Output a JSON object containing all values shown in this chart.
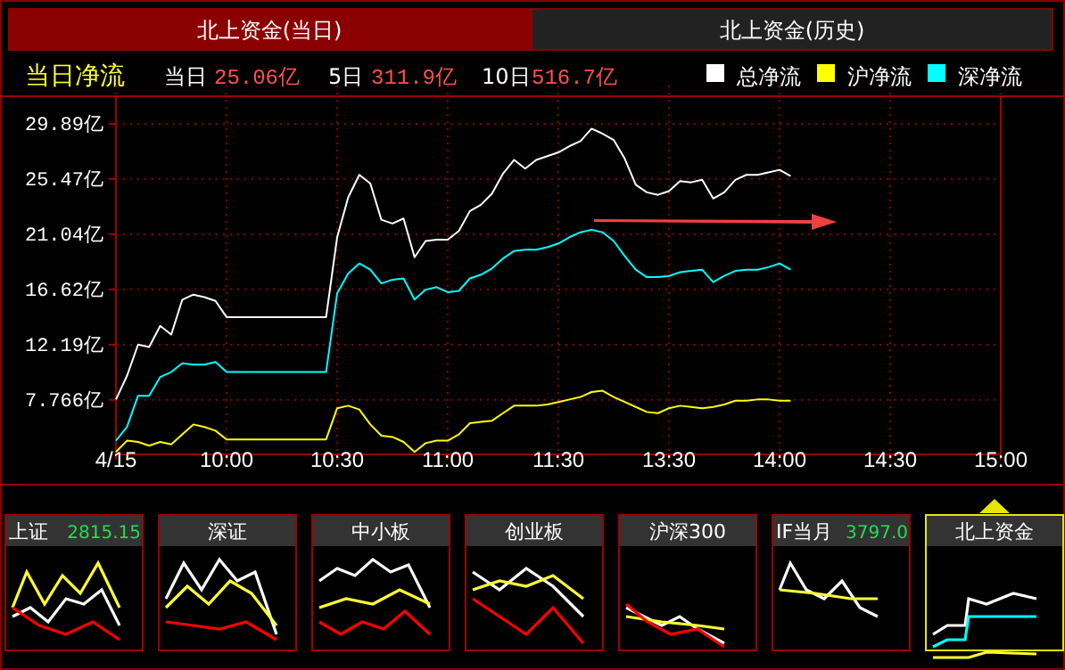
{
  "chart_data": [
    {
      "type": "line",
      "title": "当日净流",
      "annotations": [
        "当日",
        "25.06亿",
        "5日",
        "311.9亿",
        "10日",
        "516.7亿"
      ],
      "categories": [
        "4/15",
        null,
        null,
        null,
        null,
        null,
        null,
        null,
        null,
        null,
        "10:00",
        null,
        null,
        null,
        null,
        null,
        null,
        null,
        null,
        null,
        "10:30",
        null,
        null,
        null,
        null,
        null,
        null,
        null,
        null,
        null,
        "11:00",
        null,
        null,
        null,
        null,
        null,
        null,
        null,
        null,
        null,
        "11:30",
        null,
        null,
        null,
        null,
        null,
        null,
        null,
        null,
        null,
        "13:30",
        null,
        null,
        null,
        null,
        null,
        null,
        null,
        null,
        null,
        "14:00",
        null,
        null,
        null,
        null,
        null,
        null,
        null,
        null,
        null,
        "14:30",
        null,
        null,
        null,
        null,
        null,
        null,
        null,
        null,
        null,
        "15:00"
      ],
      "ylim": [
        3.4,
        32.1
      ],
      "yticks": [
        {
          "value": 7.766,
          "label": "7.766亿"
        },
        {
          "value": 12.19,
          "label": "12.19亿"
        },
        {
          "value": 16.62,
          "label": "16.62亿"
        },
        {
          "value": 21.04,
          "label": "21.04亿"
        },
        {
          "value": 25.47,
          "label": "25.47亿"
        },
        {
          "value": 29.89,
          "label": "29.89亿"
        }
      ],
      "grid": true,
      "legend": "top right",
      "series": [
        {
          "name": "总净流",
          "color": "#ffffff",
          "values": [
            7.8,
            9.7,
            12.2,
            12.0,
            13.7,
            13.0,
            15.8,
            16.2,
            16.0,
            15.7,
            14.4,
            14.4,
            14.4,
            14.4,
            14.4,
            14.4,
            14.4,
            14.4,
            14.4,
            14.4,
            20.8,
            24.0,
            25.8,
            25.1,
            22.2,
            21.9,
            22.3,
            19.2,
            20.5,
            20.6,
            20.6,
            21.3,
            22.9,
            23.4,
            24.3,
            25.9,
            27.0,
            26.3,
            27.0,
            27.3,
            27.6,
            28.1,
            28.5,
            29.5,
            29.1,
            28.6,
            27.1,
            25.0,
            24.4,
            24.2,
            24.5,
            25.3,
            25.2,
            25.4,
            23.9,
            24.4,
            25.4,
            25.8,
            25.8,
            26.0,
            26.2,
            25.7,
            null,
            null,
            null,
            null,
            null,
            null,
            null,
            null,
            null,
            null,
            null,
            null,
            null,
            null,
            null,
            null,
            null,
            null,
            null
          ]
        },
        {
          "name": "沪净流",
          "color": "#ffff00",
          "values": [
            3.6,
            4.5,
            4.4,
            4.1,
            4.4,
            4.2,
            5.0,
            5.8,
            5.6,
            5.3,
            4.6,
            4.6,
            4.6,
            4.6,
            4.6,
            4.6,
            4.6,
            4.6,
            4.6,
            4.6,
            7.1,
            7.3,
            7.0,
            5.8,
            4.9,
            4.8,
            4.4,
            3.6,
            4.3,
            4.5,
            4.5,
            5.0,
            5.9,
            6.0,
            6.1,
            6.7,
            7.3,
            7.3,
            7.3,
            7.4,
            7.6,
            7.8,
            8.0,
            8.4,
            8.5,
            8.0,
            7.6,
            7.2,
            6.8,
            6.7,
            7.1,
            7.3,
            7.2,
            7.1,
            7.2,
            7.4,
            7.7,
            7.7,
            7.8,
            7.8,
            7.7,
            7.7,
            null,
            null,
            null,
            null,
            null,
            null,
            null,
            null,
            null,
            null,
            null,
            null,
            null,
            null,
            null,
            null,
            null,
            null,
            null
          ]
        },
        {
          "name": "深净流",
          "color": "#00ffff",
          "values": [
            4.5,
            5.6,
            8.1,
            8.1,
            9.6,
            10.0,
            10.7,
            10.6,
            10.6,
            10.8,
            10.0,
            10.0,
            10.0,
            10.0,
            10.0,
            10.0,
            10.0,
            10.0,
            10.0,
            10.0,
            16.3,
            17.9,
            18.7,
            18.2,
            17.1,
            17.4,
            17.5,
            15.8,
            16.6,
            16.8,
            16.4,
            16.5,
            17.5,
            17.8,
            18.3,
            19.1,
            19.7,
            19.8,
            19.8,
            20.0,
            20.3,
            20.8,
            21.2,
            21.4,
            21.2,
            20.5,
            19.3,
            18.2,
            17.6,
            17.6,
            17.7,
            18.0,
            18.1,
            18.2,
            17.2,
            17.7,
            18.1,
            18.2,
            18.2,
            18.4,
            18.7,
            18.2,
            null,
            null,
            null,
            null,
            null,
            null,
            null,
            null,
            null,
            null,
            null,
            null,
            null,
            null,
            null,
            null,
            null,
            null,
            null
          ]
        }
      ]
    },
    {
      "type": "other",
      "annotations": [
        "北上资金(当日)",
        "北上资金(历史)",
        "上证",
        "2815.15",
        "深证",
        "中小板",
        "创业板",
        "沪深300",
        "IF当月",
        "3797.0",
        "北上资金"
      ]
    }
  ]
}
